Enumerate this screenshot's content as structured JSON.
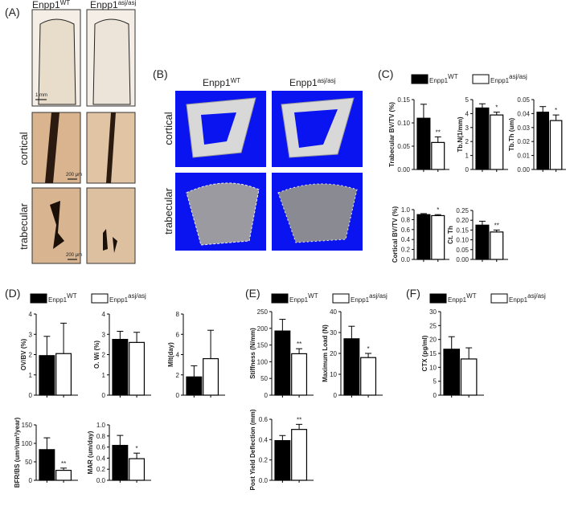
{
  "panels": {
    "A": {
      "label": "(A)",
      "columns": [
        {
          "name": "Enpp1",
          "sup": "WT"
        },
        {
          "name": "Enpp1",
          "sup": "asj/asj"
        }
      ],
      "rows": [
        "cortical",
        "trabecular"
      ],
      "scale_bars": [
        "1 mm",
        "200 μm",
        "200 μm"
      ]
    },
    "B": {
      "label": "(B)",
      "columns": [
        {
          "name": "Enpp1",
          "sup": "WT"
        },
        {
          "name": "Enpp1",
          "sup": "asj/asj"
        }
      ],
      "rows": [
        "cortical",
        "trabecular"
      ]
    },
    "C": {
      "label": "(C)",
      "legend": [
        {
          "name": "Enpp1",
          "sup": "WT"
        },
        {
          "name": "Enpp1",
          "sup": "asj/asj"
        }
      ]
    },
    "D": {
      "label": "(D)",
      "legend": [
        {
          "name": "Enpp1",
          "sup": "WT"
        },
        {
          "name": "Enpp1",
          "sup": "asj/asj"
        }
      ]
    },
    "E": {
      "label": "(E)",
      "legend": [
        {
          "name": "Enpp1",
          "sup": "WT"
        },
        {
          "name": "Enpp1",
          "sup": "asj/asj"
        }
      ]
    },
    "F": {
      "label": "(F)",
      "legend": [
        {
          "name": "Enpp1",
          "sup": "WT"
        },
        {
          "name": "Enpp1",
          "sup": "asj/asj"
        }
      ]
    }
  },
  "chart_data": [
    {
      "type": "bar",
      "ylabel": "Trabecular BV/TV (%)",
      "values": [
        0.11,
        0.058
      ],
      "errors": [
        0.03,
        0.012
      ],
      "colors": [
        "#000000",
        "#ffffff"
      ],
      "annotations": [
        null,
        "**"
      ],
      "ylim": [
        0,
        0.15
      ],
      "yticks": [
        {
          "value": 0,
          "label": "0.00"
        },
        0.05,
        {
          "value": 0.1,
          "label": "0.10"
        },
        0.15
      ]
    },
    {
      "type": "bar",
      "ylabel": "Tb.N(1/mm)",
      "values": [
        4.4,
        3.9
      ],
      "errors": [
        0.3,
        0.2
      ],
      "colors": [
        "#000000",
        "#ffffff"
      ],
      "annotations": [
        null,
        "*"
      ],
      "ylim": [
        0,
        5
      ],
      "yticks": [
        0,
        1,
        2,
        3,
        4,
        5
      ]
    },
    {
      "type": "bar",
      "ylabel": "Tb.Th (um)",
      "values": [
        0.041,
        0.035
      ],
      "errors": [
        0.004,
        0.004
      ],
      "colors": [
        "#000000",
        "#ffffff"
      ],
      "annotations": [
        null,
        "*"
      ],
      "ylim": [
        0,
        0.05
      ],
      "yticks": [
        {
          "value": 0,
          "label": "0.00"
        },
        0.01,
        0.02,
        0.03,
        0.04,
        0.05
      ]
    },
    {
      "type": "bar",
      "ylabel": "Cortical BV/TV (%)",
      "values": [
        0.9,
        0.88
      ],
      "errors": [
        0.02,
        0.02
      ],
      "colors": [
        "#000000",
        "#ffffff"
      ],
      "annotations": [
        null,
        "*"
      ],
      "ylim": [
        0,
        1
      ],
      "yticks": [
        {
          "value": 0,
          "label": "0.0"
        },
        0.2,
        0.4,
        0.6,
        0.8,
        {
          "value": 1,
          "label": "1.0"
        }
      ]
    },
    {
      "type": "bar",
      "ylabel": "Ct. Th",
      "values": [
        0.175,
        0.14
      ],
      "errors": [
        0.02,
        0.01
      ],
      "colors": [
        "#000000",
        "#ffffff"
      ],
      "annotations": [
        null,
        "**"
      ],
      "ylim": [
        0,
        0.25
      ],
      "yticks": [
        {
          "value": 0,
          "label": "0.00"
        },
        0.05,
        {
          "value": 0.1,
          "label": "0.10"
        },
        0.15,
        {
          "value": 0.2,
          "label": "0.20"
        },
        0.25
      ]
    },
    {
      "type": "bar",
      "ylabel": "OV/BV (%)",
      "values": [
        1.95,
        2.05
      ],
      "errors": [
        0.95,
        1.5
      ],
      "colors": [
        "#000000",
        "#ffffff"
      ],
      "annotations": [
        null,
        null
      ],
      "ylim": [
        0,
        4
      ],
      "yticks": [
        0,
        1,
        2,
        3,
        4
      ]
    },
    {
      "type": "bar",
      "ylabel": "O. Wi (%)",
      "values": [
        2.75,
        2.6
      ],
      "errors": [
        0.4,
        0.5
      ],
      "colors": [
        "#000000",
        "#ffffff"
      ],
      "annotations": [
        null,
        null
      ],
      "ylim": [
        0,
        4
      ],
      "yticks": [
        0,
        1,
        2,
        3,
        4
      ]
    },
    {
      "type": "bar",
      "ylabel": "Mlt(day)",
      "values": [
        1.8,
        3.6
      ],
      "errors": [
        1.1,
        2.8
      ],
      "colors": [
        "#000000",
        "#ffffff"
      ],
      "annotations": [
        null,
        null
      ],
      "ylim": [
        0,
        8
      ],
      "yticks": [
        0,
        2,
        4,
        6,
        8
      ]
    },
    {
      "type": "bar",
      "ylabel": "BFR/BS (um³/um²/year)",
      "values": [
        83,
        27
      ],
      "errors": [
        32,
        6
      ],
      "colors": [
        "#000000",
        "#ffffff"
      ],
      "annotations": [
        null,
        "**"
      ],
      "ylim": [
        0,
        150
      ],
      "yticks": [
        0,
        50,
        100,
        150
      ]
    },
    {
      "type": "bar",
      "ylabel": "MAR (um/day)",
      "values": [
        0.63,
        0.39
      ],
      "errors": [
        0.18,
        0.1
      ],
      "colors": [
        "#000000",
        "#ffffff"
      ],
      "annotations": [
        null,
        "*"
      ],
      "ylim": [
        0,
        1
      ],
      "yticks": [
        {
          "value": 0,
          "label": "0.0"
        },
        0.2,
        0.4,
        0.6,
        0.8,
        {
          "value": 1,
          "label": "1.0"
        }
      ]
    },
    {
      "type": "bar",
      "ylabel": "Stiffness (N/mm)",
      "values": [
        192,
        124
      ],
      "errors": [
        35,
        15
      ],
      "colors": [
        "#000000",
        "#ffffff"
      ],
      "annotations": [
        null,
        "**"
      ],
      "ylim": [
        0,
        250
      ],
      "yticks": [
        0,
        50,
        100,
        150,
        200,
        250
      ]
    },
    {
      "type": "bar",
      "ylabel": "Maximum Load (N)",
      "values": [
        27,
        18
      ],
      "errors": [
        6,
        2
      ],
      "colors": [
        "#000000",
        "#ffffff"
      ],
      "annotations": [
        null,
        "*"
      ],
      "ylim": [
        0,
        40
      ],
      "yticks": [
        0,
        10,
        20,
        30,
        40
      ]
    },
    {
      "type": "bar",
      "ylabel": "Post Yield  Deflection (mm)",
      "values": [
        0.39,
        0.5
      ],
      "errors": [
        0.05,
        0.05
      ],
      "colors": [
        "#000000",
        "#ffffff"
      ],
      "annotations": [
        null,
        "**"
      ],
      "ylim": [
        0,
        0.6
      ],
      "yticks": [
        {
          "value": 0,
          "label": "0.0"
        },
        0.2,
        0.4,
        0.6
      ]
    },
    {
      "type": "bar",
      "ylabel": "CTX (pg/ml)",
      "values": [
        16.5,
        13
      ],
      "errors": [
        4.5,
        4
      ],
      "colors": [
        "#000000",
        "#ffffff"
      ],
      "annotations": [
        null,
        null
      ],
      "ylim": [
        0,
        30
      ],
      "yticks": [
        0,
        5,
        10,
        15,
        20,
        25,
        30
      ]
    }
  ]
}
